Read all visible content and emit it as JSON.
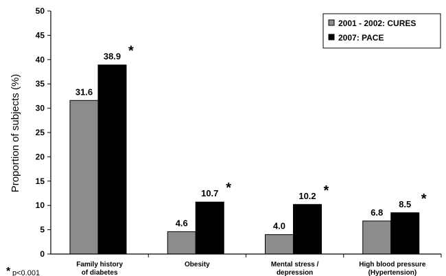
{
  "chart_data": {
    "type": "bar",
    "ylabel": "Proportion of subjects (%)",
    "ylim": [
      0,
      50
    ],
    "yticks": [
      0,
      5,
      10,
      15,
      20,
      25,
      30,
      35,
      40,
      45,
      50
    ],
    "categories": [
      [
        "Family history",
        "of diabetes"
      ],
      [
        "Obesity"
      ],
      [
        "Mental stress /",
        "depression"
      ],
      [
        "High blood pressure",
        "(Hypertension)"
      ]
    ],
    "series": [
      {
        "name": "2001 - 2002: CURES",
        "color": "#8c8c8c",
        "values": [
          31.6,
          4.6,
          4.0,
          6.8
        ],
        "labels": [
          "31.6",
          "4.6",
          "4.0",
          "6.8"
        ]
      },
      {
        "name": "2007: PACE",
        "color": "#000000",
        "values": [
          38.9,
          10.7,
          10.2,
          8.5
        ],
        "labels": [
          "38.9",
          "10.7",
          "10.2",
          "8.5"
        ]
      }
    ],
    "significance_marker": "*",
    "significant": [
      true,
      true,
      true,
      true
    ],
    "legend_position": "top-right",
    "grid": false
  },
  "footnote": {
    "symbol": "*",
    "text": "p<0.001"
  }
}
